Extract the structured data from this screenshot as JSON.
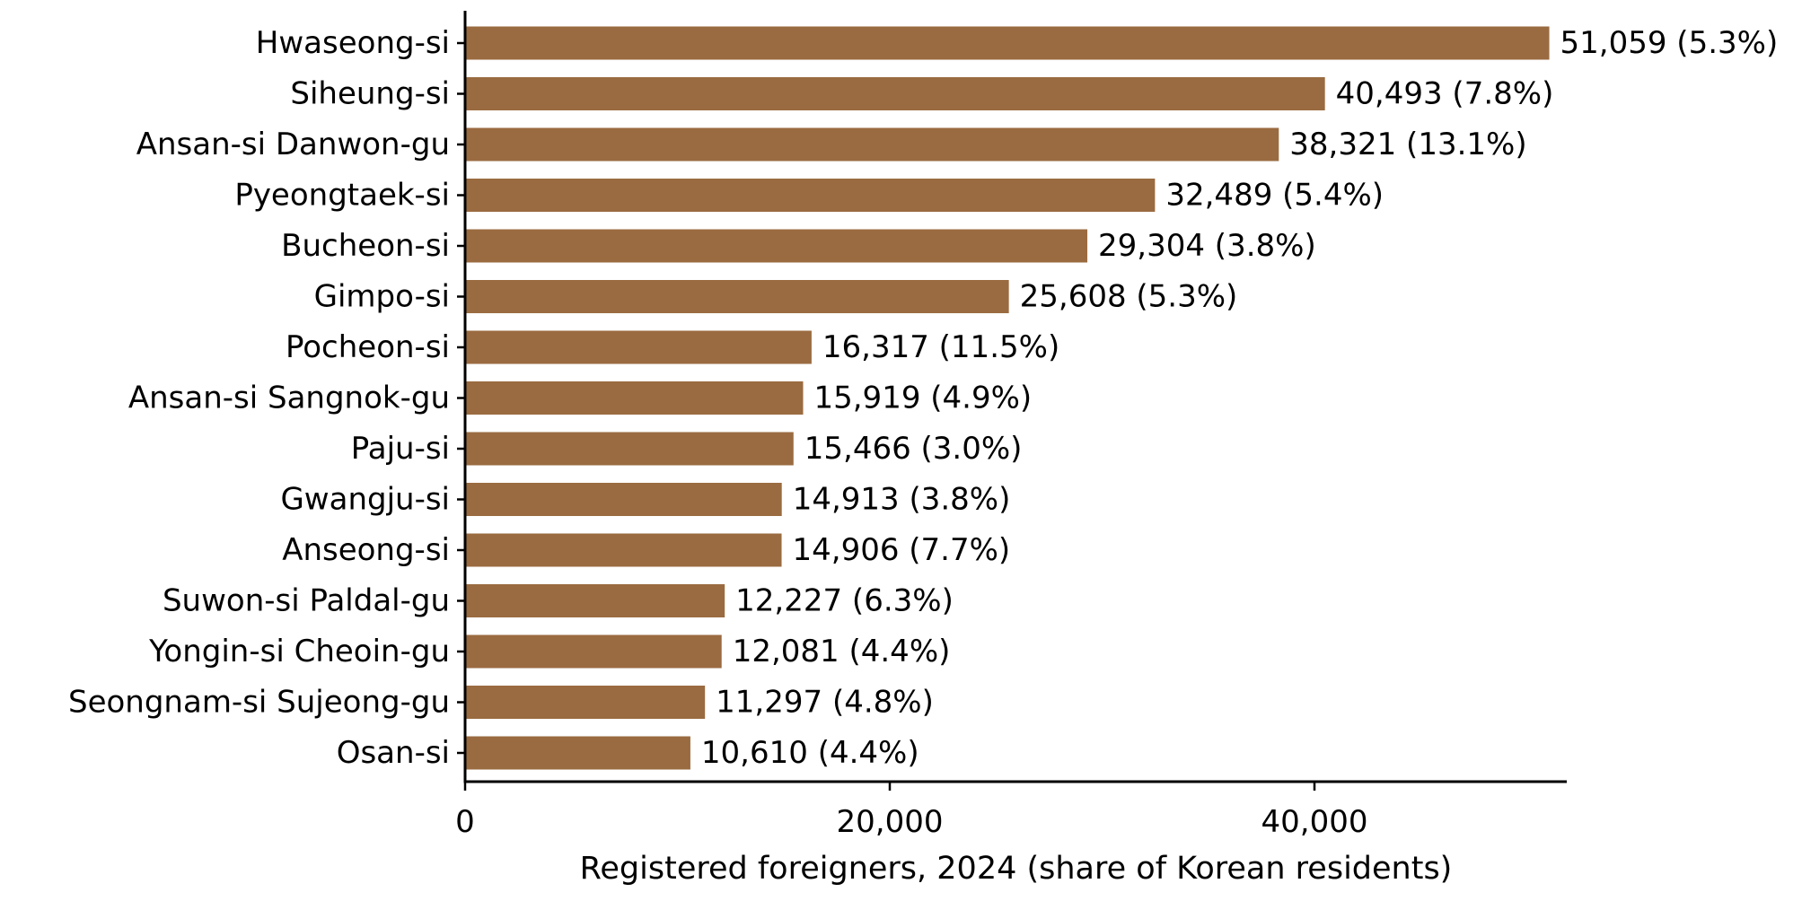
{
  "chart_data": {
    "type": "bar",
    "orientation": "horizontal",
    "categories": [
      "Hwaseong-si",
      "Siheung-si",
      "Ansan-si Danwon-gu",
      "Pyeongtaek-si",
      "Bucheon-si",
      "Gimpo-si",
      "Pocheon-si",
      "Ansan-si Sangnok-gu",
      "Paju-si",
      "Gwangju-si",
      "Anseong-si",
      "Suwon-si Paldal-gu",
      "Yongin-si Cheoin-gu",
      "Seongnam-si Sujeong-gu",
      "Osan-si"
    ],
    "values": [
      51059,
      40493,
      38321,
      32489,
      29304,
      25608,
      16317,
      15919,
      15466,
      14913,
      14906,
      12227,
      12081,
      11297,
      10610
    ],
    "value_labels": [
      "51,059 (5.3%)",
      "40,493 (7.8%)",
      "38,321 (13.1%)",
      "32,489 (5.4%)",
      "29,304 (3.8%)",
      "25,608 (5.3%)",
      "16,317 (11.5%)",
      "15,919 (4.9%)",
      "15,466 (3.0%)",
      "14,913 (3.8%)",
      "14,906 (7.7%)",
      "12,227 (6.3%)",
      "12,081 (4.4%)",
      "11,297 (4.8%)",
      "10,610 (4.4%)"
    ],
    "xlabel": "Registered foreigners, 2024 (share of Korean residents)",
    "ylabel": "",
    "title": "",
    "xlim": [
      0,
      52000
    ],
    "x_ticks": [
      0,
      20000,
      40000
    ],
    "x_tick_labels": [
      "0",
      "20,000",
      "40,000"
    ],
    "bar_color": "#9a6b40",
    "grid": false,
    "legend": "none"
  }
}
